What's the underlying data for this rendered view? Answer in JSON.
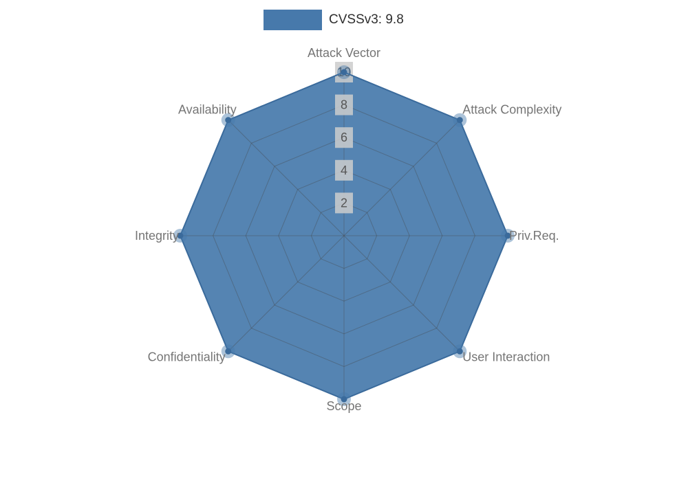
{
  "chart_data": {
    "type": "radar",
    "title": "",
    "legend": {
      "label": "CVSSv3: 9.8",
      "position": "top-center"
    },
    "categories": [
      "Attack Vector",
      "Attack Complexity",
      "Priv.Req.",
      "User Interaction",
      "Scope",
      "Confidentiality",
      "Integrity",
      "Availability"
    ],
    "series": [
      {
        "name": "CVSSv3: 9.8",
        "values": [
          10,
          10,
          10,
          10,
          10,
          10,
          10,
          10
        ]
      }
    ],
    "ticks": [
      2,
      4,
      6,
      8,
      10
    ],
    "rlim": [
      0,
      10
    ],
    "grid": true,
    "layout": {
      "center_x": 500,
      "center_y": 343,
      "radius": 238
    },
    "colors": {
      "fill": "#4779ab",
      "stroke": "#3a6a9b",
      "grid": "#444444",
      "label": "#757575",
      "tick_text": "#555555",
      "tick_bg": "#cccccc",
      "legend_text": "#2e2e2e"
    }
  }
}
